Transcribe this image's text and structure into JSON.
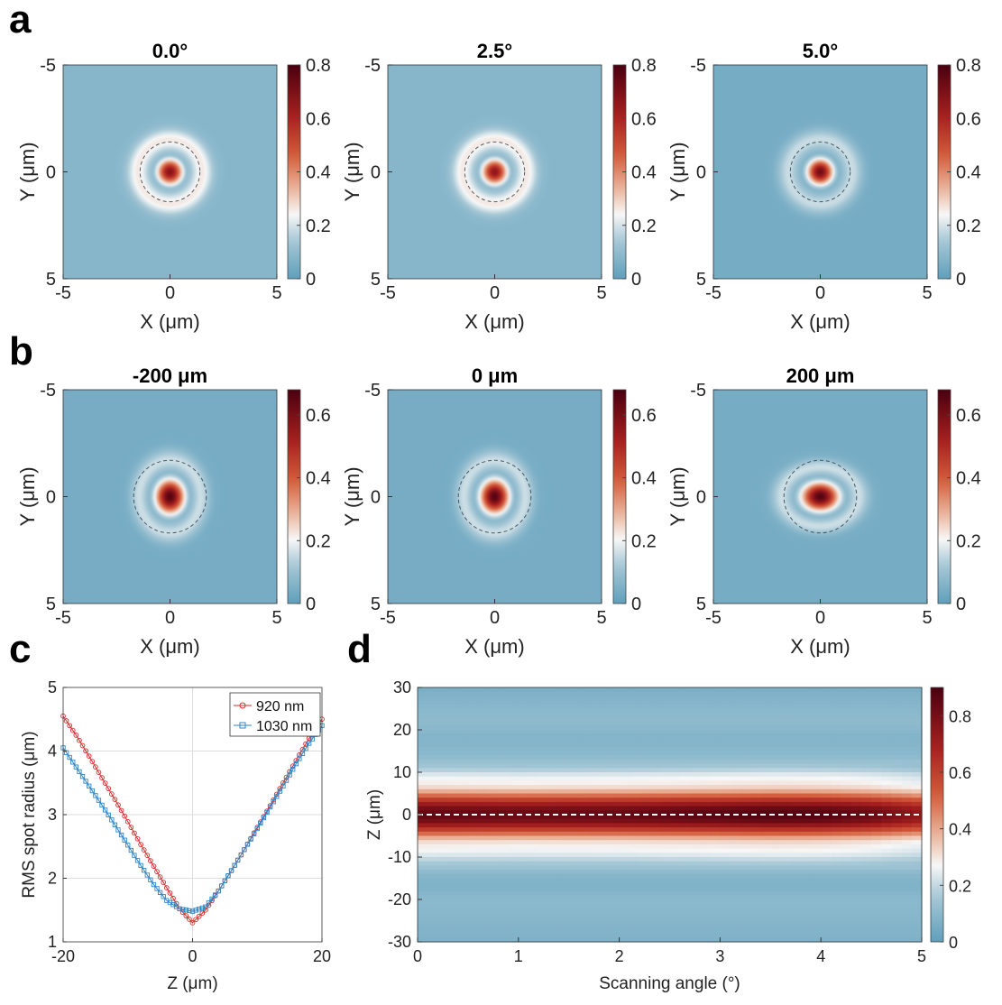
{
  "colors": {
    "low": "#5f9fbc",
    "mid": "#f7f7f7",
    "high": "#4a0010",
    "line_920": "#d92b2b",
    "line_1030": "#2f86c8",
    "dashed_circle": "#2b3a44",
    "dashed_line": "#ffffff"
  },
  "chart_data": [
    {
      "id": "a1",
      "panel": "a",
      "type": "heatmap",
      "title": "0.0°",
      "xlabel": "X (μm)",
      "ylabel": "Y (μm)",
      "xlim": [
        -5,
        5
      ],
      "ylim": [
        5,
        -5
      ],
      "xticks": [
        "-5",
        "0",
        "5"
      ],
      "yticks": [
        "-5",
        "0",
        "5"
      ],
      "clim": [
        0,
        0.8
      ],
      "cticks": [
        "0",
        "0.2",
        "0.4",
        "0.6",
        "0.8"
      ],
      "cbar_max": 0.8,
      "background_value": 0.08,
      "peak_value": 0.68,
      "core_sigma_um": 0.42,
      "ring_radius_um": 1.5,
      "ring_value": 0.18,
      "spot_aspect": 1.0,
      "dashed_radius_um": 1.4
    },
    {
      "id": "a2",
      "panel": "a",
      "type": "heatmap",
      "title": "2.5°",
      "xlabel": "X (μm)",
      "ylabel": "Y (μm)",
      "xlim": [
        -5,
        5
      ],
      "ylim": [
        5,
        -5
      ],
      "xticks": [
        "-5",
        "0",
        "5"
      ],
      "yticks": [
        "-5",
        "0",
        "5"
      ],
      "clim": [
        0,
        0.8
      ],
      "cticks": [
        "0",
        "0.2",
        "0.4",
        "0.6",
        "0.8"
      ],
      "cbar_max": 0.8,
      "background_value": 0.08,
      "peak_value": 0.66,
      "core_sigma_um": 0.42,
      "ring_radius_um": 1.5,
      "ring_value": 0.18,
      "spot_aspect": 1.0,
      "dashed_radius_um": 1.4
    },
    {
      "id": "a3",
      "panel": "a",
      "type": "heatmap",
      "title": "5.0°",
      "xlabel": "X (μm)",
      "ylabel": "Y (μm)",
      "xlim": [
        -5,
        5
      ],
      "ylim": [
        5,
        -5
      ],
      "xticks": [
        "-5",
        "0",
        "5"
      ],
      "yticks": [
        "-5",
        "0",
        "5"
      ],
      "clim": [
        0,
        0.8
      ],
      "cticks": [
        "0",
        "0.2",
        "0.4",
        "0.6",
        "0.8"
      ],
      "cbar_max": 0.8,
      "background_value": 0.045,
      "peak_value": 0.72,
      "core_sigma_um": 0.42,
      "ring_radius_um": 1.5,
      "ring_value": 0.14,
      "spot_aspect": 1.0,
      "dashed_radius_um": 1.4
    },
    {
      "id": "b1",
      "panel": "b",
      "type": "heatmap",
      "title": "-200 μm",
      "xlabel": "X (μm)",
      "ylabel": "Y (μm)",
      "xlim": [
        -5,
        5
      ],
      "ylim": [
        5,
        -5
      ],
      "xticks": [
        "-5",
        "0",
        "5"
      ],
      "yticks": [
        "-5",
        "0",
        "5"
      ],
      "clim": [
        0,
        0.68
      ],
      "cticks": [
        "0",
        "0.2",
        "0.4",
        "0.6"
      ],
      "cbar_max": 0.68,
      "background_value": 0.04,
      "peak_value": 0.66,
      "core_sigma_um": 0.55,
      "ring_radius_um": 1.7,
      "ring_value": 0.12,
      "spot_aspect": 0.85,
      "dashed_radius_um": 1.7
    },
    {
      "id": "b2",
      "panel": "b",
      "type": "heatmap",
      "title": "0 μm",
      "xlabel": "X (μm)",
      "ylabel": "Y (μm)",
      "xlim": [
        -5,
        5
      ],
      "ylim": [
        5,
        -5
      ],
      "xticks": [
        "-5",
        "0",
        "5"
      ],
      "yticks": [
        "-5",
        "0",
        "5"
      ],
      "clim": [
        0,
        0.68
      ],
      "cticks": [
        "0",
        "0.2",
        "0.4",
        "0.6"
      ],
      "cbar_max": 0.68,
      "background_value": 0.04,
      "peak_value": 0.66,
      "core_sigma_um": 0.55,
      "ring_radius_um": 1.7,
      "ring_value": 0.12,
      "spot_aspect": 0.85,
      "dashed_radius_um": 1.7
    },
    {
      "id": "b3",
      "panel": "b",
      "type": "heatmap",
      "title": "200 μm",
      "xlabel": "X (μm)",
      "ylabel": "Y (μm)",
      "xlim": [
        -5,
        5
      ],
      "ylim": [
        5,
        -5
      ],
      "xticks": [
        "-5",
        "0",
        "5"
      ],
      "yticks": [
        "-5",
        "0",
        "5"
      ],
      "clim": [
        0,
        0.68
      ],
      "cticks": [
        "0",
        "0.2",
        "0.4",
        "0.6"
      ],
      "cbar_max": 0.68,
      "background_value": 0.04,
      "peak_value": 0.66,
      "core_sigma_um": 0.6,
      "ring_radius_um": 1.8,
      "ring_value": 0.12,
      "spot_aspect": 1.3,
      "dashed_radius_um": 1.7
    },
    {
      "id": "c",
      "panel": "c",
      "type": "line",
      "xlabel": "Z (μm)",
      "ylabel": "RMS spot radius (μm)",
      "xlim": [
        -20,
        20
      ],
      "ylim": [
        1,
        5
      ],
      "xticks": [
        "-20",
        "0",
        "20"
      ],
      "yticks": [
        "1",
        "2",
        "3",
        "4",
        "5"
      ],
      "grid": true,
      "legend_position": "top-right",
      "series": [
        {
          "name": "920 nm",
          "marker": "circle",
          "x": [
            -20,
            -18,
            -16,
            -14,
            -12,
            -10,
            -8,
            -6,
            -4,
            -2,
            0,
            2,
            4,
            6,
            8,
            10,
            12,
            14,
            16,
            18,
            20
          ],
          "y": [
            4.55,
            4.25,
            3.92,
            3.58,
            3.24,
            2.89,
            2.53,
            2.19,
            1.85,
            1.52,
            1.3,
            1.5,
            1.8,
            2.12,
            2.45,
            2.8,
            3.14,
            3.5,
            3.85,
            4.2,
            4.5
          ]
        },
        {
          "name": "1030 nm",
          "marker": "square",
          "x": [
            -20,
            -18,
            -16,
            -14,
            -12,
            -10,
            -8,
            -6,
            -4,
            -2,
            0,
            2,
            4,
            6,
            8,
            10,
            12,
            14,
            16,
            18,
            20
          ],
          "y": [
            4.05,
            3.75,
            3.45,
            3.15,
            2.84,
            2.52,
            2.2,
            1.9,
            1.65,
            1.52,
            1.48,
            1.55,
            1.8,
            2.12,
            2.45,
            2.78,
            3.12,
            3.45,
            3.8,
            4.12,
            4.4
          ]
        }
      ]
    },
    {
      "id": "d",
      "panel": "d",
      "type": "heatmap",
      "xlabel": "Scanning angle (°)",
      "ylabel": "Z (μm)",
      "xlim": [
        0,
        5
      ],
      "ylim": [
        -30,
        30
      ],
      "xticks": [
        "0",
        "1",
        "2",
        "3",
        "4",
        "5"
      ],
      "yticks": [
        "-30",
        "-20",
        "-10",
        "0",
        "10",
        "20",
        "30"
      ],
      "clim": [
        0,
        0.9
      ],
      "cticks": [
        "0",
        "0.2",
        "0.4",
        "0.6",
        "0.8"
      ],
      "cbar_max": 0.9,
      "reference_line_z": 0,
      "z_profile": [
        [
          -30,
          0.07
        ],
        [
          -25,
          0.09
        ],
        [
          -20,
          0.1
        ],
        [
          -17,
          0.07
        ],
        [
          -14,
          0.09
        ],
        [
          -11,
          0.18
        ],
        [
          -9,
          0.26
        ],
        [
          -7,
          0.3
        ],
        [
          -6,
          0.34
        ],
        [
          -5,
          0.45
        ],
        [
          -3,
          0.68
        ],
        [
          -1.5,
          0.82
        ],
        [
          0,
          0.88
        ],
        [
          1.5,
          0.82
        ],
        [
          3,
          0.68
        ],
        [
          5,
          0.45
        ],
        [
          6,
          0.35
        ],
        [
          7,
          0.3
        ],
        [
          9,
          0.26
        ],
        [
          11,
          0.16
        ],
        [
          14,
          0.1
        ],
        [
          18,
          0.08
        ],
        [
          22,
          0.11
        ],
        [
          26,
          0.09
        ],
        [
          30,
          0.06
        ]
      ],
      "angle_profile": [
        [
          0,
          0.98
        ],
        [
          1,
          0.96
        ],
        [
          2,
          0.97
        ],
        [
          3,
          1.0
        ],
        [
          3.5,
          1.02
        ],
        [
          4,
          1.01
        ],
        [
          4.5,
          0.96
        ],
        [
          5,
          0.85
        ]
      ]
    }
  ],
  "panel_labels": {
    "a": "a",
    "b": "b",
    "c": "c",
    "d": "d"
  }
}
